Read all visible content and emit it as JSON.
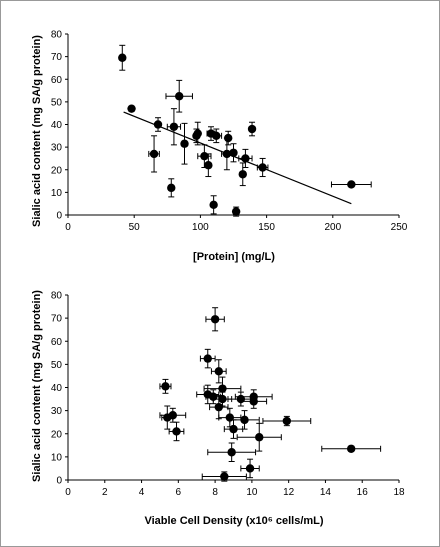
{
  "chart_data": [
    {
      "type": "scatter",
      "title": "",
      "xlabel": "[Protein] (mg/L)",
      "ylabel": "Sialic acid content (mg SA/g protein)",
      "xlim": [
        0,
        250
      ],
      "ylim": [
        0,
        80
      ],
      "xticks": [
        0,
        50,
        100,
        150,
        200,
        250
      ],
      "yticks": [
        0,
        10,
        20,
        30,
        40,
        50,
        60,
        70,
        80
      ],
      "grid": false,
      "legend": "none",
      "trendline": {
        "x": [
          42,
          214
        ],
        "y": [
          45.5,
          5
        ]
      },
      "points": [
        {
          "x": 41,
          "y": 69.5,
          "xerr": 0,
          "yerr": 5.5
        },
        {
          "x": 48,
          "y": 47,
          "xerr": 0,
          "yerr": 0
        },
        {
          "x": 65,
          "y": 27,
          "xerr": 4,
          "yerr": 8
        },
        {
          "x": 68,
          "y": 40,
          "xerr": 0,
          "yerr": 3
        },
        {
          "x": 78,
          "y": 12,
          "xerr": 0,
          "yerr": 4
        },
        {
          "x": 80,
          "y": 39,
          "xerr": 5,
          "yerr": 8
        },
        {
          "x": 84,
          "y": 52.5,
          "xerr": 10,
          "yerr": 7
        },
        {
          "x": 88,
          "y": 31.5,
          "xerr": 0,
          "yerr": 9
        },
        {
          "x": 97,
          "y": 35,
          "xerr": 0,
          "yerr": 3
        },
        {
          "x": 98,
          "y": 36,
          "xerr": 0,
          "yerr": 5
        },
        {
          "x": 103,
          "y": 26,
          "xerr": 5,
          "yerr": 5
        },
        {
          "x": 106,
          "y": 22,
          "xerr": 0,
          "yerr": 5
        },
        {
          "x": 108,
          "y": 36,
          "xerr": 3,
          "yerr": 3
        },
        {
          "x": 110,
          "y": 4.5,
          "xerr": 0,
          "yerr": 4
        },
        {
          "x": 112,
          "y": 35,
          "xerr": 4,
          "yerr": 3
        },
        {
          "x": 120,
          "y": 27,
          "xerr": 4,
          "yerr": 7
        },
        {
          "x": 121,
          "y": 34,
          "xerr": 0,
          "yerr": 3
        },
        {
          "x": 125,
          "y": 27.5,
          "xerr": 0,
          "yerr": 4
        },
        {
          "x": 127,
          "y": 1.5,
          "xerr": 0,
          "yerr": 2
        },
        {
          "x": 132,
          "y": 18,
          "xerr": 0,
          "yerr": 5
        },
        {
          "x": 134,
          "y": 25,
          "xerr": 5,
          "yerr": 4
        },
        {
          "x": 139,
          "y": 38,
          "xerr": 0,
          "yerr": 3
        },
        {
          "x": 147,
          "y": 21,
          "xerr": 4,
          "yerr": 4
        },
        {
          "x": 214,
          "y": 13.5,
          "xerr": 15,
          "yerr": 0
        }
      ]
    },
    {
      "type": "scatter",
      "title": "",
      "xlabel": "Viable Cell Density (x10⁶ cells/mL)",
      "ylabel": "Sialic acid content (mg SA/g protein)",
      "xlim": [
        0,
        18
      ],
      "ylim": [
        0,
        80
      ],
      "xticks": [
        0,
        2,
        4,
        6,
        8,
        10,
        12,
        14,
        16,
        18
      ],
      "yticks": [
        0,
        10,
        20,
        30,
        40,
        50,
        60,
        70,
        80
      ],
      "grid": false,
      "legend": "none",
      "points": [
        {
          "x": 5.3,
          "y": 40.5,
          "xerr": 0.3,
          "yerr": 3
        },
        {
          "x": 5.4,
          "y": 27,
          "xerr": 0.3,
          "yerr": 5
        },
        {
          "x": 5.7,
          "y": 28,
          "xerr": 0.7,
          "yerr": 3
        },
        {
          "x": 5.9,
          "y": 21,
          "xerr": 0.4,
          "yerr": 4
        },
        {
          "x": 7.6,
          "y": 52.5,
          "xerr": 0.4,
          "yerr": 4
        },
        {
          "x": 7.6,
          "y": 37,
          "xerr": 0.6,
          "yerr": 4
        },
        {
          "x": 7.9,
          "y": 36,
          "xerr": 0.4,
          "yerr": 3
        },
        {
          "x": 8.0,
          "y": 69.5,
          "xerr": 0.5,
          "yerr": 5
        },
        {
          "x": 8.2,
          "y": 47,
          "xerr": 0.4,
          "yerr": 5
        },
        {
          "x": 8.2,
          "y": 31.5,
          "xerr": 0.5,
          "yerr": 5
        },
        {
          "x": 8.4,
          "y": 39.5,
          "xerr": 1.0,
          "yerr": 5
        },
        {
          "x": 8.4,
          "y": 35,
          "xerr": 0.5,
          "yerr": 3
        },
        {
          "x": 8.5,
          "y": 1.5,
          "xerr": 1.2,
          "yerr": 2
        },
        {
          "x": 8.8,
          "y": 27,
          "xerr": 0.6,
          "yerr": 4
        },
        {
          "x": 8.9,
          "y": 12,
          "xerr": 1.3,
          "yerr": 4
        },
        {
          "x": 9.0,
          "y": 22,
          "xerr": 0.5,
          "yerr": 4
        },
        {
          "x": 9.4,
          "y": 35,
          "xerr": 0.7,
          "yerr": 3
        },
        {
          "x": 9.6,
          "y": 26,
          "xerr": 0.8,
          "yerr": 4
        },
        {
          "x": 9.9,
          "y": 5,
          "xerr": 0.5,
          "yerr": 4
        },
        {
          "x": 10.1,
          "y": 34,
          "xerr": 0.7,
          "yerr": 3
        },
        {
          "x": 10.1,
          "y": 36,
          "xerr": 1.0,
          "yerr": 3
        },
        {
          "x": 10.4,
          "y": 18.5,
          "xerr": 1.2,
          "yerr": 6
        },
        {
          "x": 11.9,
          "y": 25.5,
          "xerr": 1.3,
          "yerr": 2
        },
        {
          "x": 15.4,
          "y": 13.5,
          "xerr": 1.6,
          "yerr": 0
        }
      ]
    }
  ]
}
